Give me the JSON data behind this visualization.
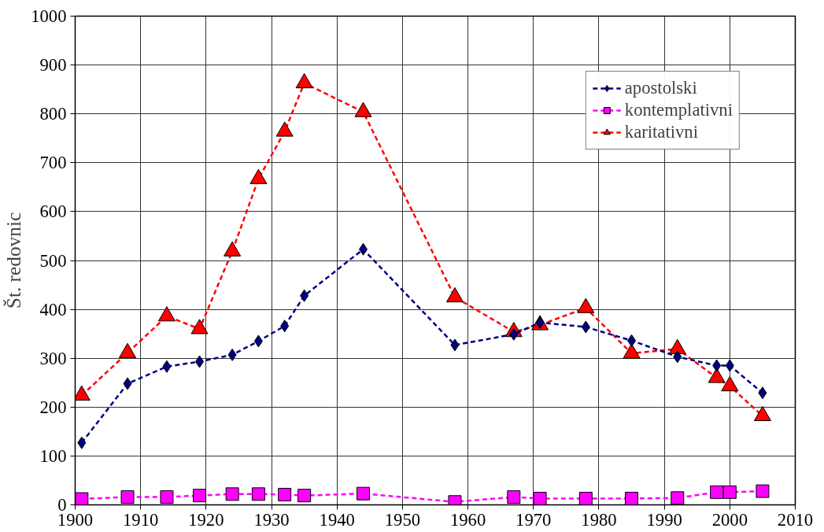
{
  "chart_data": {
    "type": "line",
    "ylabel": "Št. redovnic",
    "x": [
      1901,
      1908,
      1914,
      1919,
      1924,
      1928,
      1932,
      1935,
      1944,
      1958,
      1967,
      1971,
      1978,
      1985,
      1992,
      1998,
      2000,
      2005
    ],
    "series": [
      {
        "name": "apostolski",
        "color": "#000080",
        "marker": "diamond",
        "values": [
          127,
          248,
          283,
          293,
          307,
          335,
          366,
          428,
          523,
          327,
          349,
          373,
          364,
          336,
          303,
          285,
          285,
          229
        ]
      },
      {
        "name": "kontemplativni",
        "color": "#ff00ff",
        "marker": "square",
        "values": [
          12,
          16,
          16,
          19,
          22,
          22,
          21,
          19,
          23,
          6,
          16,
          13,
          13,
          13,
          14,
          26,
          26,
          28
        ]
      },
      {
        "name": "karitativni",
        "color": "#ff0000",
        "marker": "triangle",
        "values": [
          224,
          311,
          386,
          360,
          519,
          667,
          764,
          863,
          804,
          425,
          354,
          368,
          403,
          310,
          319,
          260,
          243,
          182
        ]
      }
    ],
    "xlim": [
      1900,
      2010
    ],
    "xticks": [
      1900,
      1910,
      1920,
      1930,
      1940,
      1950,
      1960,
      1970,
      1980,
      1990,
      2000,
      2010
    ],
    "ylim": [
      0,
      1000
    ],
    "yticks": [
      0,
      100,
      200,
      300,
      400,
      500,
      600,
      700,
      800,
      900,
      1000
    ],
    "grid": true,
    "legend": "top right",
    "line_style": "dashed"
  }
}
